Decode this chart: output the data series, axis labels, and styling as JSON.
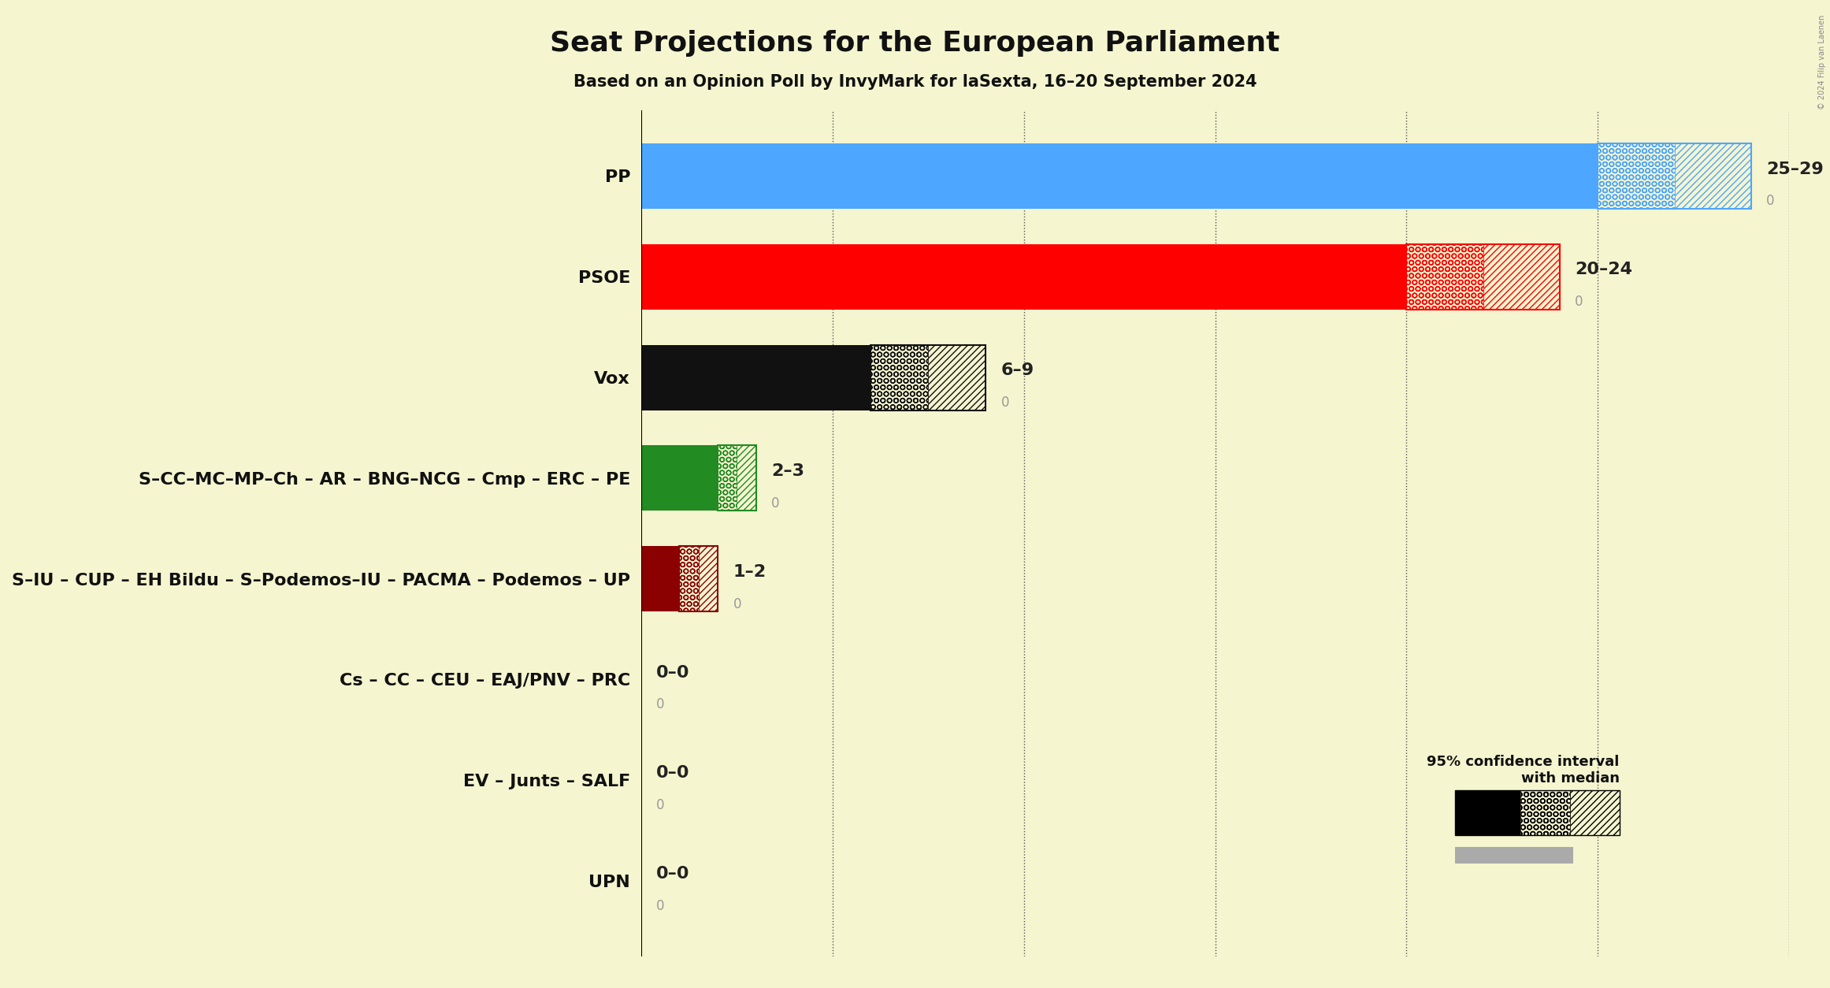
{
  "title": "Seat Projections for the European Parliament",
  "subtitle": "Based on an Opinion Poll by InvyMark for laSexta, 16–20 September 2024",
  "copyright": "© 2024 Filip van Laenen",
  "background_color": "#f5f5d0",
  "parties": [
    "PP",
    "PSOE",
    "Vox",
    "S–CC–MC–MP–Ch – AR – BNG–NCG – Cmp – ERC – PE",
    "S–IU – CUP – EH Bildu – S–Podemos–IU – PACMA – Podemos – UP",
    "Cs – CC – CEU – EAJ/PNV – PRC",
    "EV – Junts – SALF",
    "UPN"
  ],
  "median_values": [
    25,
    20,
    6,
    2,
    1,
    0,
    0,
    0
  ],
  "ci_high": [
    29,
    24,
    9,
    3,
    2,
    0,
    0,
    0
  ],
  "last_results": [
    0,
    0,
    0,
    0,
    0,
    0,
    0,
    0
  ],
  "seat_labels": [
    "25–29",
    "20–24",
    "6–9",
    "2–3",
    "1–2",
    "0–0",
    "0–0",
    "0–0"
  ],
  "colors": [
    "#4da6ff",
    "#ff0000",
    "#111111",
    "#228B22",
    "#8B0000",
    "#808080",
    "#808080",
    "#808080"
  ],
  "xlim": [
    0,
    30
  ],
  "xticks": [
    5,
    10,
    15,
    20,
    25,
    30
  ],
  "bar_height": 0.65,
  "label_fontsize": 16,
  "sublabel_fontsize": 12,
  "tick_fontsize": 16,
  "title_fontsize": 26,
  "subtitle_fontsize": 15
}
